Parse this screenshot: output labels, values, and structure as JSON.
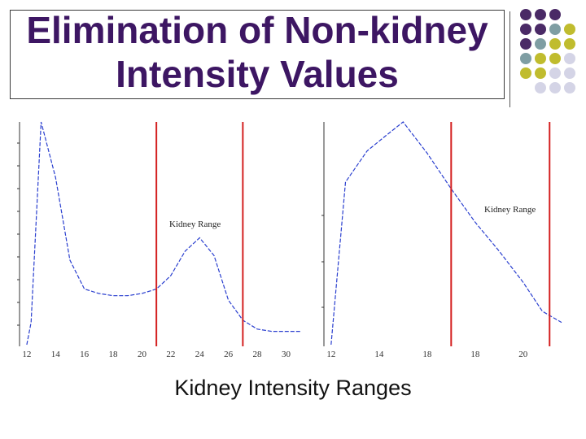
{
  "slide": {
    "title_line1": "Elimination of Non-kidney",
    "title_line2": "Intensity Values",
    "caption": "Kidney Intensity Ranges"
  },
  "colors": {
    "title": "#3d1663",
    "purple": "#4a2a66",
    "teal": "#7f9ea3",
    "olive": "#c0bc2e",
    "lavender": "#d4d4e6",
    "curve": "#2a3fcf",
    "range_line": "#d42020"
  },
  "decor_dots": [
    [
      "purple",
      "purple",
      "purple",
      null
    ],
    [
      "purple",
      "purple",
      "teal",
      "olive"
    ],
    [
      "purple",
      "teal",
      "olive",
      "olive"
    ],
    [
      "teal",
      "olive",
      "olive",
      "lavender"
    ],
    [
      "olive",
      "olive",
      "lavender",
      "lavender"
    ],
    [
      null,
      "lavender",
      "lavender",
      "lavender"
    ]
  ],
  "chart_data": [
    {
      "type": "line",
      "annotation": "Kidney Range",
      "x_tick_labels": [
        "12",
        "14",
        "16",
        "18",
        "20",
        "22",
        "24",
        "26",
        "28",
        "30"
      ],
      "range_markers": [
        21,
        27
      ],
      "points": [
        [
          12,
          0.0
        ],
        [
          12.3,
          0.1
        ],
        [
          13,
          1.0
        ],
        [
          14,
          0.75
        ],
        [
          15,
          0.38
        ],
        [
          16,
          0.25
        ],
        [
          17,
          0.23
        ],
        [
          18,
          0.22
        ],
        [
          19,
          0.22
        ],
        [
          20,
          0.23
        ],
        [
          21,
          0.25
        ],
        [
          22,
          0.31
        ],
        [
          23,
          0.42
        ],
        [
          24,
          0.48
        ],
        [
          25,
          0.4
        ],
        [
          26,
          0.2
        ],
        [
          27,
          0.11
        ],
        [
          28,
          0.07
        ],
        [
          29,
          0.06
        ],
        [
          30,
          0.06
        ],
        [
          31,
          0.06
        ]
      ]
    },
    {
      "type": "line",
      "annotation": "Kidney Range",
      "x_tick_labels": [
        "12",
        "14",
        "18",
        "18",
        "20"
      ],
      "range_markers": [
        17,
        21.1
      ],
      "points": [
        [
          12,
          0.0
        ],
        [
          12.6,
          0.73
        ],
        [
          13.5,
          0.87
        ],
        [
          14.3,
          0.94
        ],
        [
          15,
          1.0
        ],
        [
          16,
          0.86
        ],
        [
          17,
          0.7
        ],
        [
          18,
          0.55
        ],
        [
          19,
          0.42
        ],
        [
          20,
          0.28
        ],
        [
          20.8,
          0.15
        ],
        [
          21.6,
          0.1
        ]
      ]
    }
  ]
}
